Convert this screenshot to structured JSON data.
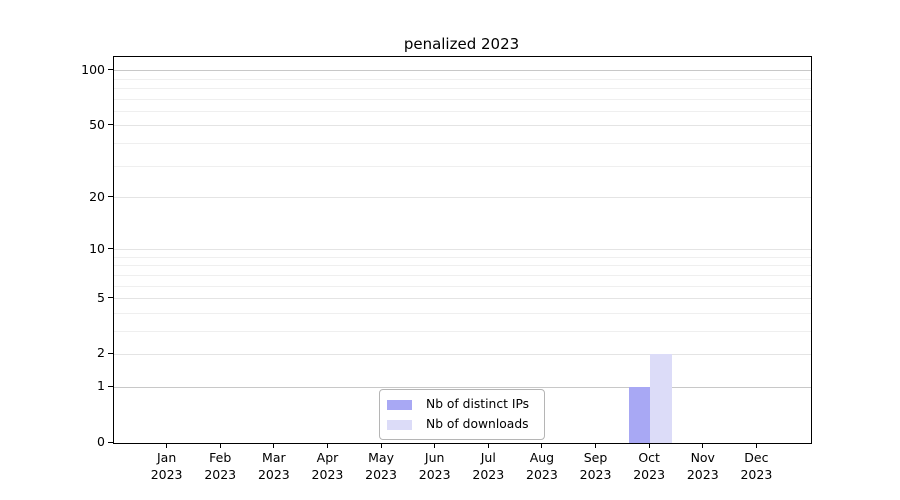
{
  "chart_data": {
    "type": "bar",
    "title": "penalized 2023",
    "categories": [
      {
        "month": "Jan",
        "year": "2023"
      },
      {
        "month": "Feb",
        "year": "2023"
      },
      {
        "month": "Mar",
        "year": "2023"
      },
      {
        "month": "Apr",
        "year": "2023"
      },
      {
        "month": "May",
        "year": "2023"
      },
      {
        "month": "Jun",
        "year": "2023"
      },
      {
        "month": "Jul",
        "year": "2023"
      },
      {
        "month": "Aug",
        "year": "2023"
      },
      {
        "month": "Sep",
        "year": "2023"
      },
      {
        "month": "Oct",
        "year": "2023"
      },
      {
        "month": "Nov",
        "year": "2023"
      },
      {
        "month": "Dec",
        "year": "2023"
      }
    ],
    "series": [
      {
        "name": "Nb of distinct IPs",
        "color": "#a8a8f4",
        "values": [
          0,
          0,
          0,
          0,
          0,
          0,
          0,
          0,
          0,
          1,
          0,
          0
        ]
      },
      {
        "name": "Nb of downloads",
        "color": "#dcdcf8",
        "values": [
          0,
          0,
          0,
          0,
          0,
          0,
          0,
          0,
          0,
          2,
          0,
          0
        ]
      }
    ],
    "xlabel": "",
    "ylabel": "",
    "yaxis": {
      "scale": "log1p",
      "ylim": [
        0,
        119
      ],
      "major_ticks": [
        0,
        1,
        2,
        5,
        10,
        20,
        50,
        100
      ],
      "minor_ticks": [
        3,
        4,
        6,
        7,
        8,
        9,
        30,
        40,
        60,
        70,
        80,
        90
      ],
      "emphasized_gridlines": [
        1,
        100
      ]
    },
    "grid": "on",
    "legend_position": "lower center, inside plot",
    "colors": {
      "background": "#ffffff",
      "axis": "#000000",
      "text": "#000000",
      "grid_major": "#e4e4e4",
      "grid_minor": "#efefef",
      "grid_emphasis": "#c8c8c8",
      "legend_border": "#b5b5b5"
    }
  }
}
